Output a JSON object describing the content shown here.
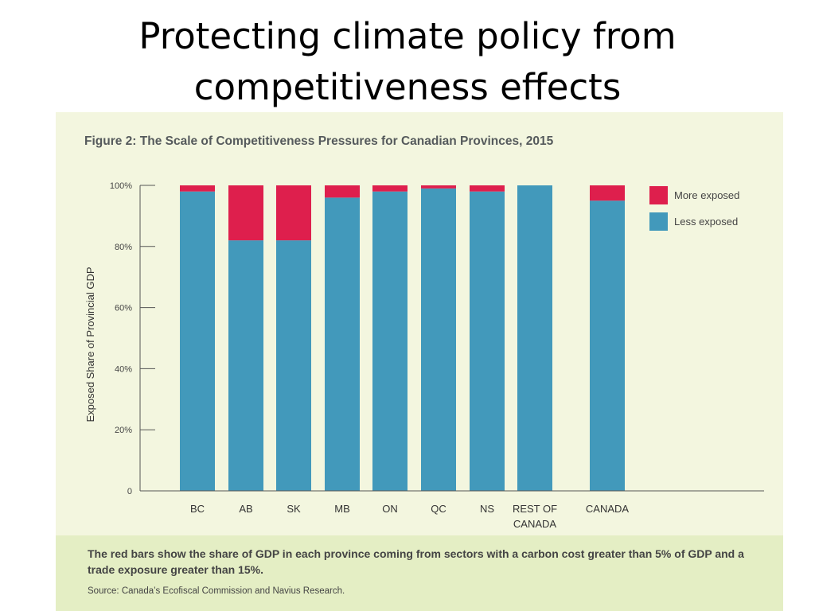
{
  "slide": {
    "title_line1": "Protecting climate policy from",
    "title_line2": "competitiveness effects"
  },
  "figure": {
    "caption": "The red bars show the share of GDP in each province coming from sectors with a carbon cost greater than 5% of GDP and a trade exposure greater than 15%.",
    "source": "Source: Canada’s Ecofiscal Commission and Navius Research."
  },
  "chart_data": {
    "type": "bar",
    "stacked": true,
    "title": "Figure 2: The Scale of Competitiveness Pressures for Canadian Provinces, 2015",
    "xlabel": "",
    "ylabel": "Exposed Share of Provincial GDP",
    "ylim": [
      0,
      100
    ],
    "yticks": [
      {
        "value": 0,
        "label": "0"
      },
      {
        "value": 20,
        "label": "20%"
      },
      {
        "value": 40,
        "label": "40%"
      },
      {
        "value": 60,
        "label": "60%"
      },
      {
        "value": 80,
        "label": "80%"
      },
      {
        "value": 100,
        "label": "100%"
      }
    ],
    "categories": [
      [
        "BC"
      ],
      [
        "AB"
      ],
      [
        "SK"
      ],
      [
        "MB"
      ],
      [
        "ON"
      ],
      [
        "QC"
      ],
      [
        "NS"
      ],
      [
        "REST OF",
        "CANADA"
      ],
      [
        "CANADA"
      ]
    ],
    "series": [
      {
        "name": "Less exposed",
        "color": "#4299bb",
        "values": [
          98,
          82,
          82,
          96,
          98,
          99,
          98,
          100,
          95
        ]
      },
      {
        "name": "More exposed",
        "color": "#de1f4d",
        "values": [
          2,
          18,
          18,
          4,
          2,
          1,
          2,
          0,
          5
        ]
      }
    ],
    "legend": [
      {
        "label": "More exposed",
        "color": "#de1f4d"
      },
      {
        "label": "Less exposed",
        "color": "#4299bb"
      }
    ],
    "legend_position": "top-right",
    "grid": false
  }
}
